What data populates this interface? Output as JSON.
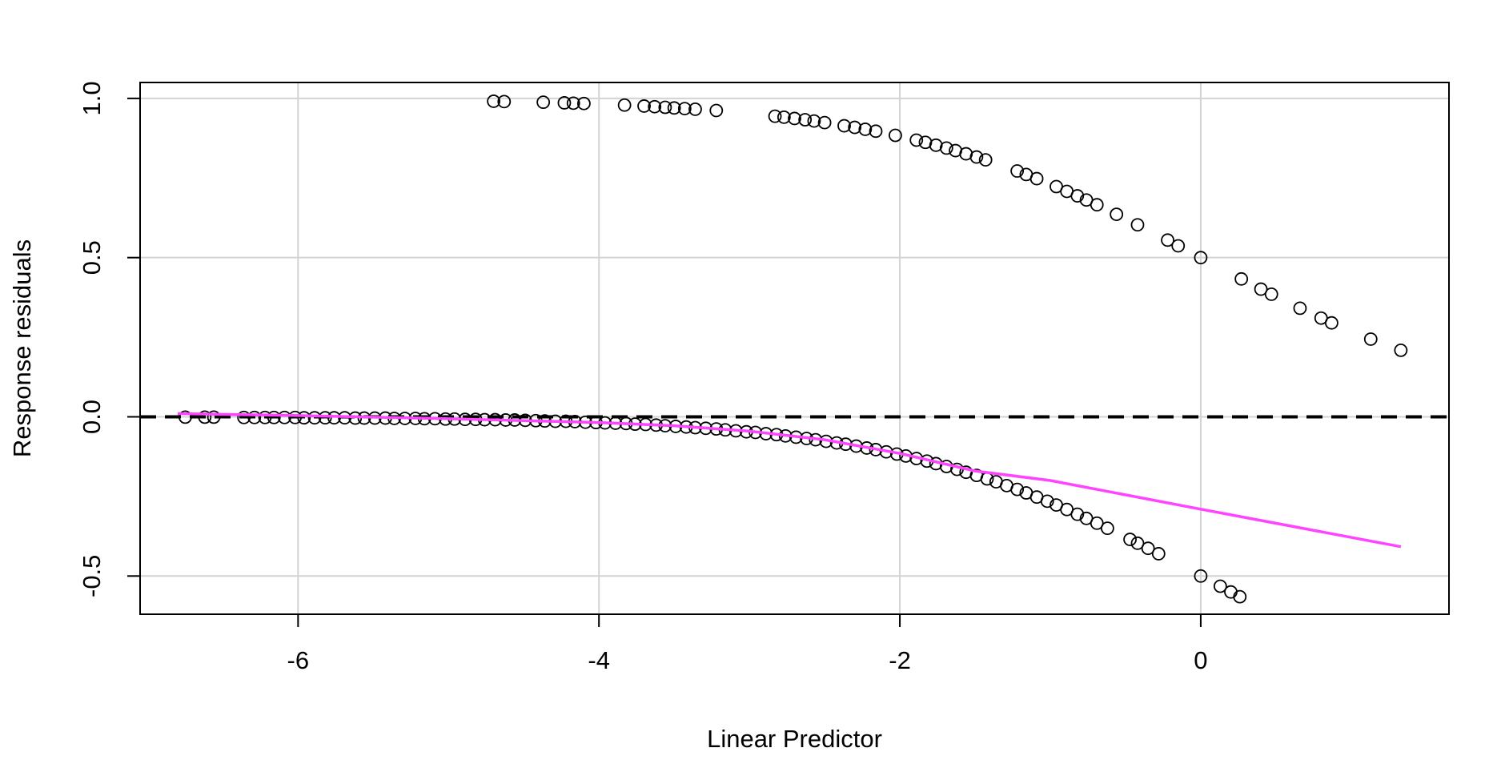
{
  "chart_data": {
    "type": "scatter",
    "title": "",
    "xlabel": "Linear Predictor",
    "ylabel": "Response residuals",
    "xlim": [
      -7.05,
      1.65
    ],
    "ylim": [
      -0.62,
      1.05
    ],
    "xticks": [
      -6,
      -4,
      -2,
      0
    ],
    "xtick_labels": [
      "-6",
      "-4",
      "-2",
      "0"
    ],
    "yticks": [
      -0.5,
      0.0,
      0.5,
      1.0
    ],
    "ytick_labels": [
      "-0.5",
      "0.0",
      "0.5",
      "1.0"
    ],
    "grid": true,
    "reference_line": {
      "y": 0,
      "style": "dashed",
      "color": "#000000"
    },
    "smooth_color": "#ff44ff",
    "point_color": "#000000",
    "points_upper": [
      [
        -4.7,
        0.991
      ],
      [
        -4.63,
        0.99
      ],
      [
        -4.37,
        0.988
      ],
      [
        -4.23,
        0.986
      ],
      [
        -4.17,
        0.985
      ],
      [
        -4.1,
        0.984
      ],
      [
        -3.83,
        0.979
      ],
      [
        -3.7,
        0.976
      ],
      [
        -3.63,
        0.974
      ],
      [
        -3.56,
        0.972
      ],
      [
        -3.5,
        0.97
      ],
      [
        -3.43,
        0.968
      ],
      [
        -3.36,
        0.966
      ],
      [
        -3.22,
        0.962
      ],
      [
        -2.83,
        0.944
      ],
      [
        -2.77,
        0.941
      ],
      [
        -2.7,
        0.937
      ],
      [
        -2.63,
        0.933
      ],
      [
        -2.57,
        0.929
      ],
      [
        -2.5,
        0.924
      ],
      [
        -2.37,
        0.914
      ],
      [
        -2.3,
        0.909
      ],
      [
        -2.23,
        0.903
      ],
      [
        -2.16,
        0.897
      ],
      [
        -2.03,
        0.884
      ],
      [
        -1.89,
        0.869
      ],
      [
        -1.83,
        0.862
      ],
      [
        -1.76,
        0.853
      ],
      [
        -1.69,
        0.844
      ],
      [
        -1.63,
        0.836
      ],
      [
        -1.56,
        0.826
      ],
      [
        -1.49,
        0.816
      ],
      [
        -1.43,
        0.807
      ],
      [
        -1.22,
        0.772
      ],
      [
        -1.16,
        0.761
      ],
      [
        -1.09,
        0.748
      ],
      [
        -0.96,
        0.723
      ],
      [
        -0.89,
        0.708
      ],
      [
        -0.82,
        0.694
      ],
      [
        -0.76,
        0.681
      ],
      [
        -0.69,
        0.666
      ],
      [
        -0.56,
        0.636
      ],
      [
        -0.42,
        0.603
      ],
      [
        -0.22,
        0.555
      ],
      [
        -0.15,
        0.537
      ],
      [
        0.0,
        0.5
      ],
      [
        0.27,
        0.433
      ],
      [
        0.4,
        0.401
      ],
      [
        0.47,
        0.385
      ],
      [
        0.66,
        0.341
      ],
      [
        0.8,
        0.31
      ],
      [
        0.87,
        0.295
      ],
      [
        1.13,
        0.244
      ],
      [
        1.33,
        0.209
      ]
    ],
    "points_lower": [
      [
        -6.75,
        -0.001
      ],
      [
        -6.62,
        -0.001
      ],
      [
        -6.56,
        -0.001
      ],
      [
        -6.36,
        -0.002
      ],
      [
        -6.29,
        -0.002
      ],
      [
        -6.22,
        -0.002
      ],
      [
        -6.16,
        -0.002
      ],
      [
        -6.09,
        -0.002
      ],
      [
        -6.02,
        -0.002
      ],
      [
        -5.96,
        -0.003
      ],
      [
        -5.89,
        -0.003
      ],
      [
        -5.82,
        -0.003
      ],
      [
        -5.76,
        -0.003
      ],
      [
        -5.69,
        -0.003
      ],
      [
        -5.62,
        -0.004
      ],
      [
        -5.56,
        -0.004
      ],
      [
        -5.49,
        -0.004
      ],
      [
        -5.42,
        -0.004
      ],
      [
        -5.36,
        -0.005
      ],
      [
        -5.29,
        -0.005
      ],
      [
        -5.22,
        -0.005
      ],
      [
        -5.16,
        -0.006
      ],
      [
        -5.09,
        -0.006
      ],
      [
        -5.02,
        -0.007
      ],
      [
        -4.96,
        -0.007
      ],
      [
        -4.89,
        -0.008
      ],
      [
        -4.82,
        -0.008
      ],
      [
        -4.76,
        -0.009
      ],
      [
        -4.69,
        -0.009
      ],
      [
        -4.62,
        -0.01
      ],
      [
        -4.56,
        -0.01
      ],
      [
        -4.49,
        -0.011
      ],
      [
        -4.42,
        -0.012
      ],
      [
        -4.36,
        -0.013
      ],
      [
        -4.29,
        -0.014
      ],
      [
        -4.22,
        -0.014
      ],
      [
        -4.16,
        -0.015
      ],
      [
        -4.09,
        -0.017
      ],
      [
        -4.02,
        -0.018
      ],
      [
        -3.96,
        -0.019
      ],
      [
        -3.89,
        -0.02
      ],
      [
        -3.82,
        -0.021
      ],
      [
        -3.76,
        -0.023
      ],
      [
        -3.69,
        -0.024
      ],
      [
        -3.62,
        -0.026
      ],
      [
        -3.56,
        -0.028
      ],
      [
        -3.49,
        -0.03
      ],
      [
        -3.42,
        -0.032
      ],
      [
        -3.36,
        -0.034
      ],
      [
        -3.29,
        -0.036
      ],
      [
        -3.22,
        -0.038
      ],
      [
        -3.16,
        -0.041
      ],
      [
        -3.09,
        -0.044
      ],
      [
        -3.02,
        -0.047
      ],
      [
        -2.96,
        -0.049
      ],
      [
        -2.89,
        -0.053
      ],
      [
        -2.82,
        -0.056
      ],
      [
        -2.76,
        -0.06
      ],
      [
        -2.69,
        -0.064
      ],
      [
        -2.62,
        -0.068
      ],
      [
        -2.56,
        -0.072
      ],
      [
        -2.49,
        -0.077
      ],
      [
        -2.42,
        -0.082
      ],
      [
        -2.36,
        -0.086
      ],
      [
        -2.29,
        -0.092
      ],
      [
        -2.22,
        -0.098
      ],
      [
        -2.16,
        -0.103
      ],
      [
        -2.09,
        -0.11
      ],
      [
        -2.02,
        -0.117
      ],
      [
        -1.96,
        -0.123
      ],
      [
        -1.89,
        -0.131
      ],
      [
        -1.82,
        -0.139
      ],
      [
        -1.76,
        -0.147
      ],
      [
        -1.69,
        -0.156
      ],
      [
        -1.62,
        -0.165
      ],
      [
        -1.56,
        -0.174
      ],
      [
        -1.49,
        -0.184
      ],
      [
        -1.42,
        -0.195
      ],
      [
        -1.36,
        -0.204
      ],
      [
        -1.29,
        -0.216
      ],
      [
        -1.22,
        -0.228
      ],
      [
        -1.16,
        -0.239
      ],
      [
        -1.09,
        -0.252
      ],
      [
        -1.02,
        -0.265
      ],
      [
        -0.96,
        -0.277
      ],
      [
        -0.89,
        -0.291
      ],
      [
        -0.82,
        -0.306
      ],
      [
        -0.76,
        -0.319
      ],
      [
        -0.69,
        -0.334
      ],
      [
        -0.62,
        -0.35
      ],
      [
        -0.47,
        -0.385
      ],
      [
        -0.42,
        -0.397
      ],
      [
        -0.35,
        -0.413
      ],
      [
        -0.28,
        -0.43
      ],
      [
        0.0,
        -0.5
      ],
      [
        0.13,
        -0.532
      ],
      [
        0.2,
        -0.55
      ],
      [
        0.26,
        -0.565
      ]
    ],
    "smooth_line": [
      [
        -6.8,
        0.01
      ],
      [
        -6.0,
        0.004
      ],
      [
        -5.0,
        -0.006
      ],
      [
        -4.0,
        -0.018
      ],
      [
        -3.5,
        -0.028
      ],
      [
        -3.0,
        -0.045
      ],
      [
        -2.5,
        -0.072
      ],
      [
        -2.0,
        -0.115
      ],
      [
        -1.5,
        -0.17
      ],
      [
        -1.0,
        -0.2
      ],
      [
        0.0,
        -0.29
      ],
      [
        1.33,
        -0.408
      ]
    ]
  }
}
